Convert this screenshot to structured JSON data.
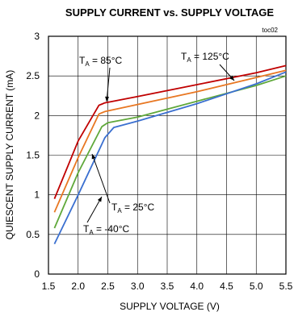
{
  "chart_data": {
    "type": "line",
    "title": "SUPPLY CURRENT vs. SUPPLY VOLTAGE",
    "tag": "toc02",
    "xlabel": "SUPPLY VOLTAGE (V)",
    "ylabel": "QUIESCENT SUPPLY CURRENT (mA)",
    "xlim": [
      1.5,
      5.5
    ],
    "ylim": [
      0,
      3
    ],
    "xticks": [
      "1.5",
      "2.0",
      "2.5",
      "3.0",
      "3.5",
      "4.0",
      "4.5",
      "5.0",
      "5.5"
    ],
    "yticks": [
      "0",
      "0.5",
      "1",
      "1.5",
      "2",
      "2.5",
      "3"
    ],
    "grid": true,
    "series": [
      {
        "name": "T_A = 125°C",
        "color": "#c00000",
        "x": [
          1.6,
          2.0,
          2.35,
          2.45,
          3.0,
          4.0,
          5.0,
          5.5
        ],
        "y": [
          0.95,
          1.68,
          2.13,
          2.16,
          2.24,
          2.39,
          2.54,
          2.63
        ]
      },
      {
        "name": "T_A = 85°C",
        "color": "#e87722",
        "x": [
          1.6,
          2.0,
          2.35,
          2.45,
          3.0,
          4.0,
          5.0,
          5.5
        ],
        "y": [
          0.78,
          1.47,
          2.02,
          2.05,
          2.14,
          2.3,
          2.48,
          2.57
        ]
      },
      {
        "name": "T_A = 25°C",
        "color": "#5fa83a",
        "x": [
          1.6,
          2.0,
          2.4,
          2.5,
          3.0,
          4.0,
          5.0,
          5.5
        ],
        "y": [
          0.58,
          1.28,
          1.86,
          1.91,
          1.98,
          2.18,
          2.38,
          2.5
        ]
      },
      {
        "name": "T_A = -40°C",
        "color": "#3a6fd0",
        "x": [
          1.6,
          2.0,
          2.45,
          2.6,
          3.0,
          4.0,
          5.0,
          5.5
        ],
        "y": [
          0.38,
          1.0,
          1.72,
          1.85,
          1.93,
          2.15,
          2.4,
          2.55
        ]
      }
    ],
    "annotations": [
      {
        "prefix": "T",
        "sub": "A",
        "text": " = 85°C",
        "series": "T_A = 85°C"
      },
      {
        "prefix": "T",
        "sub": "A",
        "text": " = 125°C",
        "series": "T_A = 125°C"
      },
      {
        "prefix": "T",
        "sub": "A",
        "text": " = 25°C",
        "series": "T_A = 25°C"
      },
      {
        "prefix": "T",
        "sub": "A",
        "text": " = -40°C",
        "series": "T_A = -40°C"
      }
    ]
  }
}
